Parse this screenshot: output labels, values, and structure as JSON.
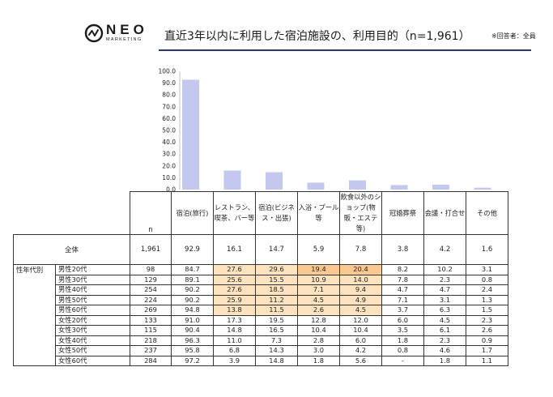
{
  "brand": {
    "name": "NEO",
    "sub": "MARKETING"
  },
  "title": "直近3年以内に利用した宿泊施設の、利用目的（n=1,961）",
  "note": "※回答者：全員",
  "chart_data": {
    "type": "bar",
    "ylim": [
      0,
      100
    ],
    "yticks": [
      "0.0",
      "10.0",
      "20.0",
      "30.0",
      "40.0",
      "50.0",
      "60.0",
      "70.0",
      "80.0",
      "90.0",
      "100.0"
    ],
    "categories": [
      "宿泊(旅行)",
      "レストラン、喫茶、バー等",
      "宿泊(ビジネス・出張)",
      "入浴・プール等",
      "飲食以外のショップ(物販・エステ等)",
      "冠婚葬祭",
      "会議・打合せ",
      "その他"
    ],
    "values": [
      92.9,
      16.1,
      14.7,
      5.9,
      7.8,
      3.8,
      4.2,
      1.6
    ],
    "bar_color": "#c3c8ee"
  },
  "table": {
    "n_label": "n",
    "group_label": "性年代別",
    "total": {
      "label": "全体",
      "n": "1,961",
      "values": [
        "92.9",
        "16.1",
        "14.7",
        "5.9",
        "7.8",
        "3.8",
        "4.2",
        "1.6"
      ]
    },
    "rows": [
      {
        "label": "男性20代",
        "n": "98",
        "values": [
          "84.7",
          "27.6",
          "29.6",
          "19.4",
          "20.4",
          "8.2",
          "10.2",
          "3.1"
        ],
        "hl": [
          0,
          1,
          1,
          2,
          2,
          0,
          0,
          0
        ]
      },
      {
        "label": "男性30代",
        "n": "129",
        "values": [
          "89.1",
          "25.6",
          "15.5",
          "10.9",
          "14.0",
          "7.8",
          "2.3",
          "0.8"
        ],
        "hl": [
          0,
          1,
          1,
          1,
          1,
          0,
          0,
          0
        ]
      },
      {
        "label": "男性40代",
        "n": "254",
        "values": [
          "90.2",
          "27.6",
          "18.5",
          "7.1",
          "9.4",
          "4.7",
          "4.7",
          "2.4"
        ],
        "hl": [
          0,
          1,
          1,
          1,
          1,
          0,
          0,
          0
        ]
      },
      {
        "label": "男性50代",
        "n": "224",
        "values": [
          "90.2",
          "25.9",
          "11.2",
          "4.5",
          "4.9",
          "7.1",
          "3.1",
          "1.3"
        ],
        "hl": [
          0,
          1,
          1,
          1,
          1,
          0,
          0,
          0
        ]
      },
      {
        "label": "男性60代",
        "n": "269",
        "values": [
          "94.8",
          "13.8",
          "11.5",
          "2.6",
          "4.5",
          "3.7",
          "6.3",
          "1.5"
        ],
        "hl": [
          0,
          1,
          1,
          1,
          1,
          0,
          0,
          0
        ]
      },
      {
        "label": "女性20代",
        "n": "133",
        "values": [
          "91.0",
          "17.3",
          "19.5",
          "12.8",
          "12.0",
          "6.0",
          "4.5",
          "2.3"
        ],
        "hl": [
          0,
          0,
          0,
          0,
          0,
          0,
          0,
          0
        ]
      },
      {
        "label": "女性30代",
        "n": "115",
        "values": [
          "90.4",
          "14.8",
          "16.5",
          "10.4",
          "10.4",
          "3.5",
          "6.1",
          "2.6"
        ],
        "hl": [
          0,
          0,
          0,
          0,
          0,
          0,
          0,
          0
        ]
      },
      {
        "label": "女性40代",
        "n": "218",
        "values": [
          "96.3",
          "11.0",
          "7.3",
          "2.8",
          "6.0",
          "1.8",
          "2.3",
          "0.9"
        ],
        "hl": [
          0,
          0,
          0,
          0,
          0,
          0,
          0,
          0
        ]
      },
      {
        "label": "女性50代",
        "n": "237",
        "values": [
          "95.8",
          "6.8",
          "14.3",
          "3.0",
          "4.2",
          "0.8",
          "4.6",
          "1.7"
        ],
        "hl": [
          0,
          0,
          0,
          0,
          0,
          0,
          0,
          0
        ]
      },
      {
        "label": "女性60代",
        "n": "284",
        "values": [
          "97.2",
          "3.9",
          "14.8",
          "1.8",
          "5.6",
          "-",
          "1.8",
          "1.1"
        ],
        "hl": [
          0,
          0,
          0,
          0,
          0,
          0,
          0,
          0
        ]
      }
    ]
  }
}
